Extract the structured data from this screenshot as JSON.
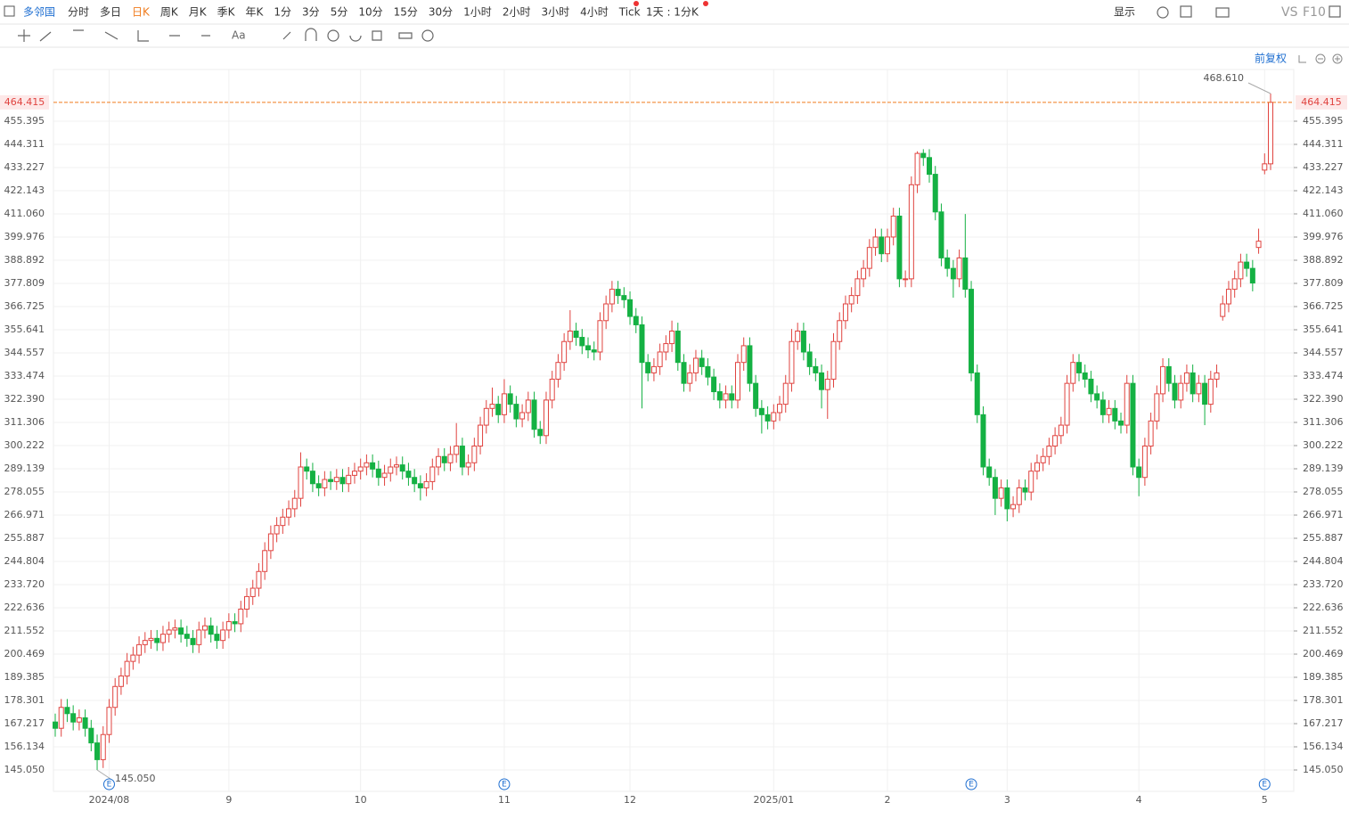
{
  "toolbar": {
    "name": "多邻国",
    "periods": [
      "分时",
      "多日",
      "日K",
      "周K",
      "月K",
      "季K",
      "年K",
      "1分",
      "3分",
      "5分",
      "10分",
      "15分",
      "30分",
      "1小时",
      "2小时",
      "3小时",
      "4小时",
      "Tick"
    ],
    "active": 2,
    "interval": "1天 : 1分K",
    "display": "显示",
    "vs": "VS",
    "f10": "F10",
    "adjust": "前复权"
  },
  "chart_data": {
    "type": "candlestick",
    "up_color": "#e0433f",
    "down_color": "#14b143",
    "grid": true,
    "categories": [
      null,
      null,
      null,
      null,
      null,
      null,
      null,
      null,
      null,
      "2024/08",
      null,
      null,
      null,
      null,
      null,
      null,
      null,
      null,
      null,
      null,
      null,
      null,
      null,
      null,
      null,
      null,
      null,
      null,
      null,
      "9",
      null,
      null,
      null,
      null,
      null,
      null,
      null,
      null,
      null,
      null,
      null,
      null,
      null,
      null,
      null,
      null,
      null,
      null,
      null,
      null,
      null,
      "10",
      null,
      null,
      null,
      null,
      null,
      null,
      null,
      null,
      null,
      null,
      null,
      null,
      null,
      null,
      null,
      null,
      null,
      null,
      null,
      null,
      null,
      null,
      null,
      "11",
      null,
      null,
      null,
      null,
      null,
      null,
      null,
      null,
      null,
      null,
      null,
      null,
      null,
      null,
      null,
      null,
      null,
      null,
      null,
      null,
      "12",
      null,
      null,
      null,
      null,
      null,
      null,
      null,
      null,
      null,
      null,
      null,
      null,
      null,
      null,
      null,
      null,
      null,
      null,
      null,
      null,
      null,
      null,
      null,
      "2025/01",
      null,
      null,
      null,
      null,
      null,
      null,
      null,
      null,
      null,
      null,
      null,
      null,
      null,
      null,
      null,
      null,
      null,
      null,
      "2",
      null,
      null,
      null,
      null,
      null,
      null,
      null,
      null,
      null,
      null,
      null,
      null,
      null,
      null,
      null,
      null,
      null,
      null,
      null,
      "3",
      null,
      null,
      null,
      null,
      null,
      null,
      null,
      null,
      null,
      null,
      null,
      null,
      null,
      null,
      null,
      null,
      null,
      null,
      null,
      null,
      null,
      "4",
      null,
      null,
      null,
      null,
      null,
      null,
      null,
      null,
      null,
      null,
      null,
      null,
      null,
      null,
      null,
      null,
      null,
      null,
      null,
      null,
      "5"
    ],
    "ohlc": [
      [
        168,
        172,
        161,
        165
      ],
      [
        165,
        179,
        161,
        175
      ],
      [
        175,
        179,
        168,
        172
      ],
      [
        172,
        176,
        164,
        168
      ],
      [
        168,
        174,
        164,
        170
      ],
      [
        170,
        174,
        161,
        165
      ],
      [
        165,
        169,
        154,
        158
      ],
      [
        158,
        162,
        145.05,
        150
      ],
      [
        150,
        166,
        146,
        162
      ],
      [
        162,
        179,
        158,
        175
      ],
      [
        175,
        189,
        171,
        185
      ],
      [
        185,
        194,
        181,
        190
      ],
      [
        190,
        201,
        186,
        197
      ],
      [
        197,
        204,
        193,
        200
      ],
      [
        200,
        209,
        196,
        205
      ],
      [
        205,
        211,
        201,
        207
      ],
      [
        207,
        212,
        203,
        208
      ],
      [
        208,
        212,
        202,
        206
      ],
      [
        206,
        214,
        202,
        210
      ],
      [
        210,
        216,
        206,
        212
      ],
      [
        212,
        217,
        208,
        213
      ],
      [
        213,
        217,
        206,
        210
      ],
      [
        210,
        214,
        204,
        208
      ],
      [
        208,
        212,
        201,
        205
      ],
      [
        205,
        216,
        201,
        212
      ],
      [
        212,
        218,
        208,
        214
      ],
      [
        214,
        218,
        206,
        210
      ],
      [
        210,
        214,
        203,
        207
      ],
      [
        207,
        216,
        203,
        212
      ],
      [
        212,
        220,
        208,
        216
      ],
      [
        216,
        220,
        211,
        215
      ],
      [
        215,
        226,
        211,
        222
      ],
      [
        222,
        232,
        218,
        228
      ],
      [
        228,
        236,
        224,
        232
      ],
      [
        232,
        244,
        228,
        240
      ],
      [
        240,
        254,
        236,
        250
      ],
      [
        250,
        262,
        246,
        258
      ],
      [
        258,
        266,
        254,
        262
      ],
      [
        262,
        270,
        258,
        266
      ],
      [
        266,
        274,
        262,
        270
      ],
      [
        270,
        279,
        266,
        275
      ],
      [
        275,
        297,
        271,
        290
      ],
      [
        290,
        294,
        284,
        288
      ],
      [
        288,
        292,
        278,
        282
      ],
      [
        282,
        286,
        276,
        280
      ],
      [
        280,
        288,
        276,
        284
      ],
      [
        284,
        288,
        279,
        283
      ],
      [
        283,
        289,
        279,
        285
      ],
      [
        285,
        289,
        278,
        282
      ],
      [
        282,
        290,
        278,
        286
      ],
      [
        286,
        292,
        282,
        288
      ],
      [
        288,
        294,
        284,
        290
      ],
      [
        290,
        296,
        286,
        292
      ],
      [
        292,
        296,
        285,
        289
      ],
      [
        289,
        293,
        281,
        285
      ],
      [
        285,
        291,
        281,
        287
      ],
      [
        287,
        294,
        283,
        290
      ],
      [
        290,
        295,
        286,
        291
      ],
      [
        291,
        295,
        284,
        288
      ],
      [
        288,
        292,
        281,
        285
      ],
      [
        285,
        289,
        278,
        282
      ],
      [
        282,
        286,
        274,
        280
      ],
      [
        280,
        287,
        276,
        283
      ],
      [
        283,
        294,
        279,
        290
      ],
      [
        290,
        299,
        286,
        295
      ],
      [
        295,
        299,
        288,
        292
      ],
      [
        292,
        300,
        288,
        296
      ],
      [
        296,
        311,
        292,
        300
      ],
      [
        300,
        304,
        286,
        290
      ],
      [
        290,
        296,
        286,
        292
      ],
      [
        292,
        304,
        288,
        300
      ],
      [
        300,
        314,
        296,
        310
      ],
      [
        310,
        322,
        306,
        318
      ],
      [
        318,
        328,
        314,
        320
      ],
      [
        320,
        324,
        311,
        315
      ],
      [
        315,
        332,
        311,
        325
      ],
      [
        325,
        329,
        316,
        320
      ],
      [
        320,
        324,
        309,
        313
      ],
      [
        313,
        320,
        309,
        316
      ],
      [
        316,
        326,
        312,
        322
      ],
      [
        322,
        326,
        304,
        308
      ],
      [
        308,
        312,
        301,
        305
      ],
      [
        305,
        326,
        301,
        322
      ],
      [
        322,
        336,
        318,
        332
      ],
      [
        332,
        344,
        328,
        340
      ],
      [
        340,
        354,
        336,
        350
      ],
      [
        350,
        365,
        346,
        355
      ],
      [
        355,
        359,
        348,
        352
      ],
      [
        352,
        356,
        344,
        348
      ],
      [
        348,
        352,
        342,
        346
      ],
      [
        346,
        350,
        341,
        345
      ],
      [
        345,
        364,
        341,
        360
      ],
      [
        360,
        372,
        356,
        368
      ],
      [
        368,
        379,
        364,
        375
      ],
      [
        375,
        379,
        368,
        372
      ],
      [
        372,
        376,
        366,
        370
      ],
      [
        370,
        374,
        358,
        362
      ],
      [
        362,
        366,
        354,
        358
      ],
      [
        358,
        362,
        318,
        340
      ],
      [
        340,
        344,
        331,
        335
      ],
      [
        335,
        342,
        331,
        338
      ],
      [
        338,
        349,
        334,
        345
      ],
      [
        345,
        353,
        341,
        349
      ],
      [
        349,
        360,
        345,
        355
      ],
      [
        355,
        359,
        336,
        340
      ],
      [
        340,
        344,
        326,
        330
      ],
      [
        330,
        339,
        326,
        335
      ],
      [
        335,
        346,
        331,
        342
      ],
      [
        342,
        346,
        334,
        338
      ],
      [
        338,
        342,
        329,
        333
      ],
      [
        333,
        337,
        322,
        326
      ],
      [
        326,
        330,
        318,
        322
      ],
      [
        322,
        329,
        318,
        325
      ],
      [
        325,
        329,
        318,
        322
      ],
      [
        322,
        344,
        318,
        340
      ],
      [
        340,
        352,
        336,
        348
      ],
      [
        348,
        352,
        326,
        330
      ],
      [
        330,
        334,
        314,
        318
      ],
      [
        318,
        322,
        306,
        315
      ],
      [
        315,
        319,
        308,
        312
      ],
      [
        312,
        320,
        308,
        316
      ],
      [
        316,
        324,
        312,
        320
      ],
      [
        320,
        334,
        316,
        330
      ],
      [
        330,
        356,
        326,
        350
      ],
      [
        350,
        359,
        346,
        355
      ],
      [
        355,
        359,
        341,
        345
      ],
      [
        345,
        349,
        334,
        338
      ],
      [
        338,
        342,
        331,
        335
      ],
      [
        335,
        339,
        318,
        327
      ],
      [
        327,
        336,
        313,
        332
      ],
      [
        332,
        354,
        328,
        350
      ],
      [
        350,
        364,
        346,
        360
      ],
      [
        360,
        372,
        356,
        368
      ],
      [
        368,
        376,
        364,
        372
      ],
      [
        372,
        384,
        368,
        380
      ],
      [
        380,
        389,
        376,
        385
      ],
      [
        385,
        399,
        381,
        395
      ],
      [
        395,
        404,
        391,
        400
      ],
      [
        400,
        404,
        388,
        392
      ],
      [
        392,
        404,
        388,
        400
      ],
      [
        400,
        414,
        396,
        410
      ],
      [
        410,
        414,
        376,
        380
      ],
      [
        380,
        384,
        376,
        380
      ],
      [
        380,
        429,
        376,
        425
      ],
      [
        425,
        441,
        421,
        440
      ],
      [
        440,
        442,
        434,
        438
      ],
      [
        438,
        442,
        426,
        430
      ],
      [
        430,
        434,
        408,
        412
      ],
      [
        412,
        416,
        386,
        390
      ],
      [
        390,
        394,
        381,
        385
      ],
      [
        385,
        389,
        371,
        380
      ],
      [
        380,
        394,
        376,
        390
      ],
      [
        390,
        411,
        371,
        375
      ],
      [
        375,
        379,
        331,
        335
      ],
      [
        335,
        339,
        311,
        315
      ],
      [
        315,
        319,
        286,
        290
      ],
      [
        290,
        294,
        281,
        285
      ],
      [
        285,
        289,
        267,
        275
      ],
      [
        275,
        284,
        271,
        280
      ],
      [
        280,
        284,
        264,
        270
      ],
      [
        270,
        276,
        266,
        272
      ],
      [
        272,
        284,
        268,
        280
      ],
      [
        280,
        284,
        274,
        278
      ],
      [
        278,
        292,
        274,
        288
      ],
      [
        288,
        296,
        284,
        292
      ],
      [
        292,
        299,
        288,
        295
      ],
      [
        295,
        304,
        291,
        300
      ],
      [
        300,
        309,
        296,
        305
      ],
      [
        305,
        314,
        301,
        310
      ],
      [
        310,
        334,
        306,
        330
      ],
      [
        330,
        344,
        326,
        340
      ],
      [
        340,
        344,
        331,
        335
      ],
      [
        335,
        339,
        328,
        332
      ],
      [
        332,
        336,
        321,
        325
      ],
      [
        325,
        329,
        318,
        322
      ],
      [
        322,
        326,
        311,
        315
      ],
      [
        315,
        322,
        311,
        318
      ],
      [
        318,
        322,
        308,
        312
      ],
      [
        312,
        316,
        306,
        310
      ],
      [
        310,
        334,
        306,
        330
      ],
      [
        330,
        334,
        286,
        290
      ],
      [
        290,
        294,
        276,
        285
      ],
      [
        285,
        304,
        281,
        300
      ],
      [
        300,
        316,
        296,
        312
      ],
      [
        312,
        329,
        308,
        325
      ],
      [
        325,
        342,
        321,
        338
      ],
      [
        338,
        342,
        326,
        330
      ],
      [
        330,
        334,
        318,
        322
      ],
      [
        322,
        334,
        318,
        330
      ],
      [
        330,
        339,
        326,
        335
      ],
      [
        335,
        339,
        321,
        325
      ],
      [
        325,
        334,
        321,
        330
      ],
      [
        330,
        334,
        310,
        320
      ],
      [
        320,
        336,
        316,
        332
      ],
      [
        332,
        339,
        328,
        335
      ],
      [
        362,
        372,
        360,
        368
      ],
      [
        368,
        379,
        364,
        375
      ],
      [
        375,
        384,
        371,
        380
      ],
      [
        380,
        392,
        376,
        388
      ],
      [
        388,
        392,
        381,
        385
      ],
      [
        385,
        389,
        374,
        378
      ],
      [
        395,
        404,
        392,
        398
      ],
      [
        432,
        440,
        430,
        435
      ],
      [
        435,
        468.61,
        432,
        464.415
      ]
    ],
    "ylim": [
      134.82,
      480.12
    ],
    "yticks": [
      {
        "value": 145.05,
        "label": "145.050"
      },
      156.134,
      167.217,
      178.301,
      189.385,
      200.469,
      211.552,
      222.636,
      {
        "value": 233.72,
        "label": "233.720"
      },
      244.804,
      255.887,
      266.971,
      278.055,
      289.139,
      300.222,
      311.306,
      {
        "value": 322.39,
        "label": "322.390"
      },
      333.474,
      344.557,
      355.641,
      366.725,
      377.809,
      388.892,
      399.976,
      {
        "value": 411.06,
        "label": "411.060"
      },
      422.143,
      433.227,
      444.311,
      455.395
    ],
    "last_price": 464.415,
    "last_color": "#f07c1e",
    "annotations": [
      {
        "index": 203,
        "value": 468.61,
        "label": "468.610"
      },
      {
        "index": 7,
        "value": 145.05,
        "label": "145.050"
      }
    ],
    "event_label": "E",
    "events": [
      9,
      75,
      153,
      202
    ]
  }
}
